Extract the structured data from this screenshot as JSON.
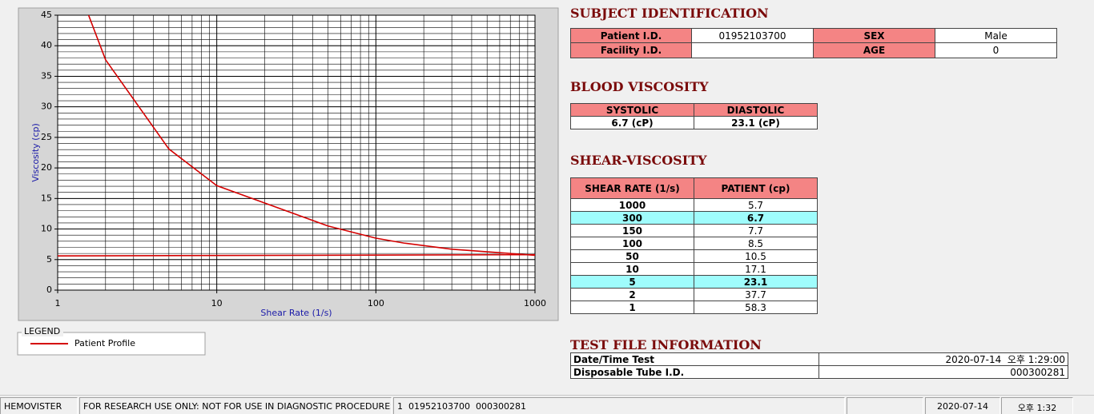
{
  "chart_data": {
    "type": "line",
    "x_label": "Shear Rate (1/s)",
    "y_label": "Viscosity (cp)",
    "x_scale": "log",
    "xlim": [
      1,
      1000
    ],
    "xticks": [
      1,
      10,
      100,
      1000
    ],
    "ylim": [
      0,
      45
    ],
    "yticks": [
      0,
      5,
      10,
      15,
      20,
      25,
      30,
      35,
      40,
      45
    ],
    "grid": true,
    "legend_title": "LEGEND",
    "series": [
      {
        "name": "Patient Profile",
        "color": "#d40000",
        "x": [
          1,
          2,
          5,
          10,
          50,
          100,
          150,
          300,
          1000
        ],
        "values": [
          58.3,
          37.7,
          23.1,
          17.1,
          10.5,
          8.5,
          7.7,
          6.7,
          5.7
        ]
      },
      {
        "color": "#d40000",
        "x": [
          1,
          1000
        ],
        "values": [
          5.6,
          5.8
        ]
      }
    ]
  },
  "subject": {
    "title": "SUBJECT IDENTIFICATION",
    "patient_id": {
      "label": "Patient I.D.",
      "value": "01952103700"
    },
    "sex": {
      "label": "SEX",
      "value": "Male"
    },
    "facility_id": {
      "label": "Facility I.D."
    },
    "age": {
      "label": "AGE",
      "value": 0
    }
  },
  "blood": {
    "title": "BLOOD VISCOSITY",
    "headers": [
      "SYSTOLIC",
      "DIASTOLIC"
    ],
    "values": [
      "6.7 (cP)",
      "23.1 (cP)"
    ]
  },
  "shear": {
    "title": "SHEAR-VISCOSITY",
    "headers": [
      "SHEAR RATE (1/s)",
      "PATIENT (cp)"
    ],
    "highlight_rows": [
      1,
      6
    ],
    "rows": [
      [
        1000,
        5.7
      ],
      [
        300,
        6.7
      ],
      [
        150,
        7.7
      ],
      [
        100,
        8.5
      ],
      [
        50,
        10.5
      ],
      [
        10,
        17.1
      ],
      [
        5,
        23.1
      ],
      [
        2,
        37.7
      ],
      [
        1,
        58.3
      ]
    ]
  },
  "test_file": {
    "title": "TEST FILE INFORMATION",
    "rows": [
      [
        "Date/Time Test",
        "2020-07-14  오후 1:29:00"
      ],
      [
        "Disposable Tube I.D.",
        "000300281"
      ]
    ]
  },
  "status_bar": [
    "HEMOVISTER",
    "FOR RESEARCH USE ONLY: NOT FOR USE IN DIAGNOSTIC PROCEDURES",
    "1  01952103700  000300281",
    "2020-07-14",
    "오후 1:32"
  ]
}
